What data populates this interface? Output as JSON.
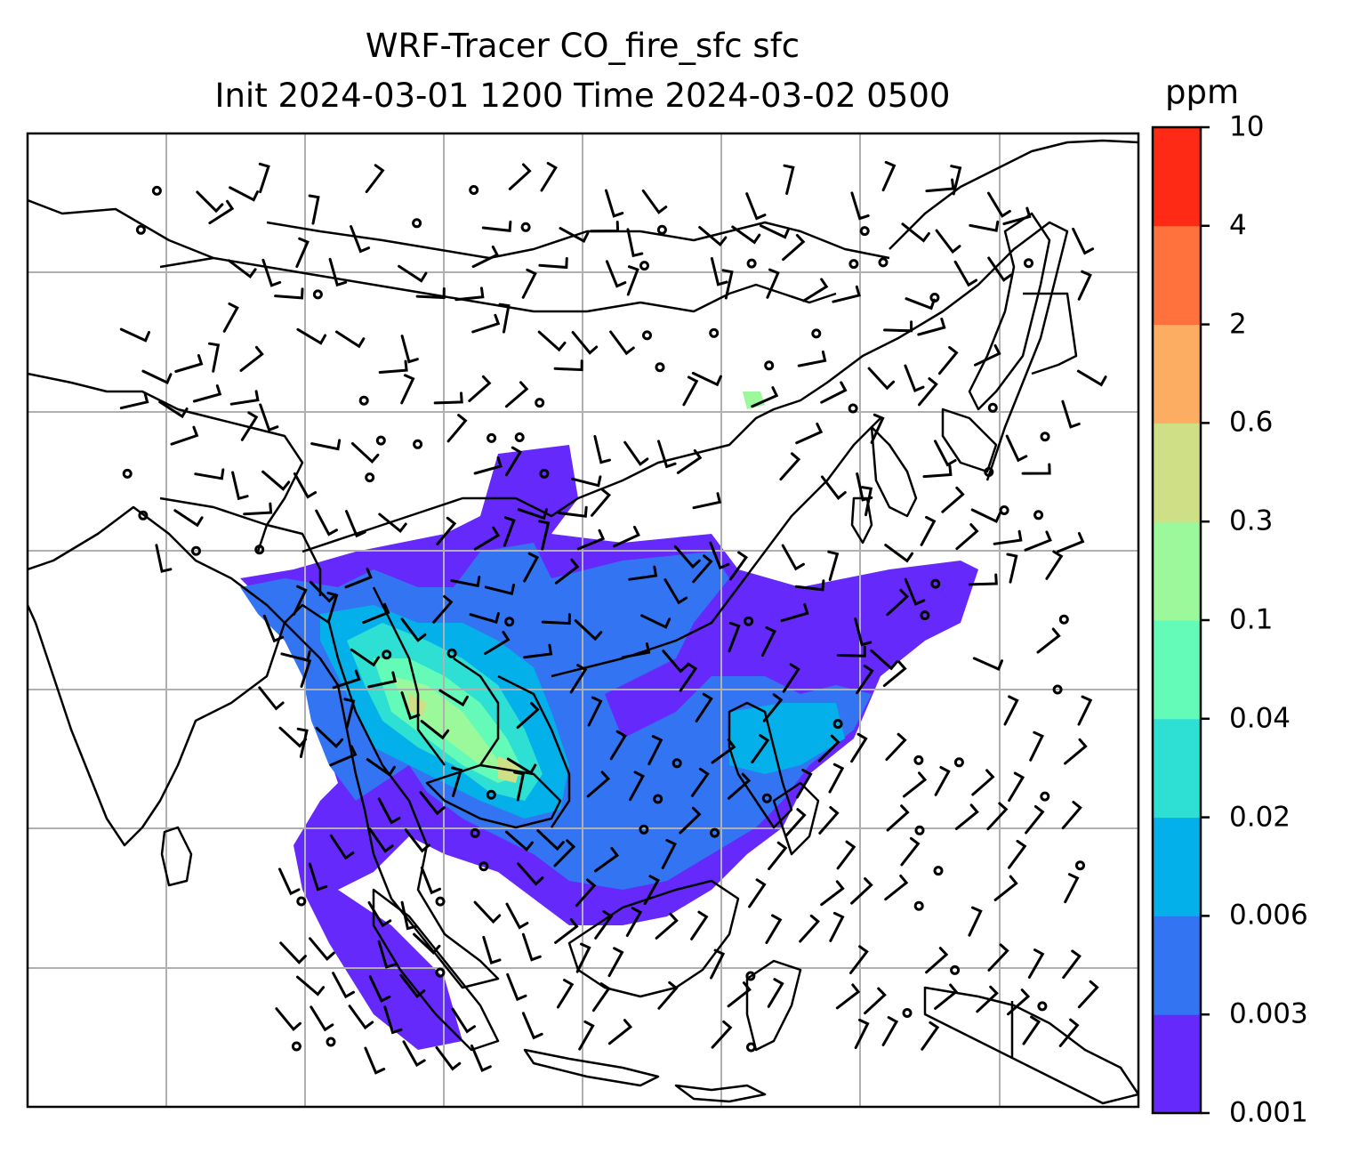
{
  "title": {
    "line1": "WRF-Tracer CO_fire_sfc sfc",
    "line2": "Init 2024-03-01 1200 Time 2024-03-02 0500"
  },
  "colorbar": {
    "unit": "ppm",
    "levels": [
      "0.001",
      "0.003",
      "0.006",
      "0.02",
      "0.04",
      "0.1",
      "0.3",
      "0.6",
      "2",
      "4",
      "10"
    ],
    "colors": [
      "#6629fb",
      "#3274f2",
      "#04b0ea",
      "#2de0d3",
      "#64fab8",
      "#9bf89b",
      "#cfdf86",
      "#fcad62",
      "#ff723d",
      "#ff2a15"
    ]
  },
  "map": {
    "gridlines": true,
    "background": "#ffffff",
    "coastline_color": "#000000",
    "gridline_color": "#b0b0b0",
    "wind_barbs": true
  }
}
